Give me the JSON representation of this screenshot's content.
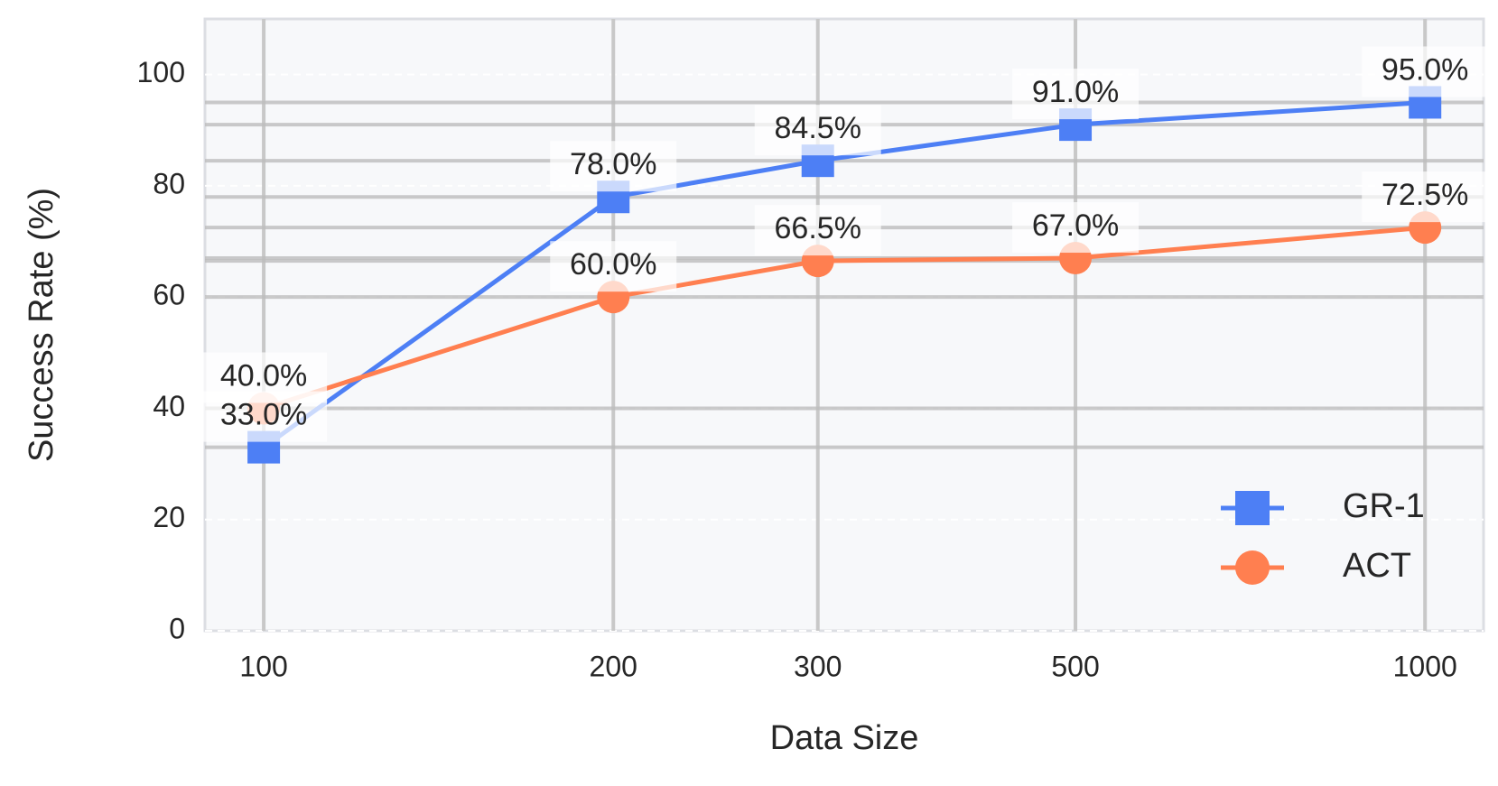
{
  "chart_data": {
    "type": "line",
    "x_label": "Data Size",
    "y_label": "Success Rate (%)",
    "x": [
      100,
      200,
      300,
      500,
      1000
    ],
    "xscale": "log",
    "xlim": [
      89,
      1123
    ],
    "xticks": [
      100,
      200,
      300,
      500,
      1000
    ],
    "ylim": [
      0,
      110
    ],
    "yticks": [
      0,
      20,
      40,
      60,
      80,
      100
    ],
    "grid": true,
    "legend": "lower right",
    "series": [
      {
        "name": "GR-1",
        "color": "#4d7ff5",
        "marker": "square",
        "values": [
          33.0,
          78.0,
          84.5,
          91.0,
          95.0
        ],
        "value_labels": [
          "33.0%",
          "78.0%",
          "84.5%",
          "91.0%",
          "95.0%"
        ]
      },
      {
        "name": "ACT",
        "color": "#ff7f50",
        "marker": "circle",
        "values": [
          40.0,
          60.0,
          66.5,
          67.0,
          72.5
        ],
        "value_labels": [
          "40.0%",
          "60.0%",
          "66.5%",
          "67.0%",
          "72.5%"
        ]
      }
    ]
  }
}
